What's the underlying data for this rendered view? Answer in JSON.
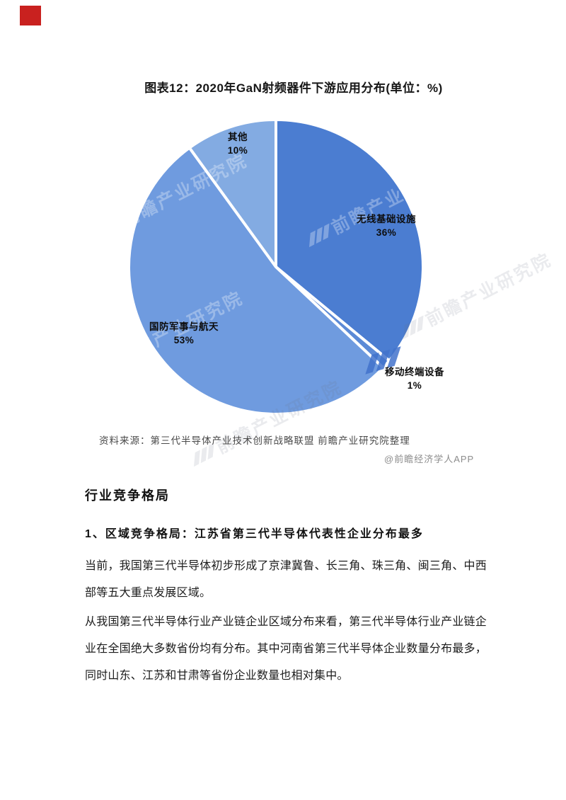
{
  "page": {
    "marker_color": "#c9211f"
  },
  "chart_data": {
    "type": "pie",
    "title": "图表12：2020年GaN射频器件下游应用分布(单位：%)",
    "unit": "%",
    "categories": [
      "无线基础设施",
      "移动终端设备",
      "国防军事与航天",
      "其他"
    ],
    "values": [
      36,
      1,
      53,
      10
    ],
    "pct_labels": [
      "36%",
      "1%",
      "53%",
      "10%"
    ],
    "colors": [
      "#4b7dd1",
      "#5c8ad6",
      "#6f9bdf",
      "#83abe2"
    ],
    "slice_ids": [
      "wireless-infrastructure",
      "mobile-terminal-devices",
      "defense-military-aerospace",
      "other"
    ],
    "start_angle_deg": -90,
    "direction": "clockwise",
    "separator_color": "#ffffff",
    "legend": "none"
  },
  "watermark": {
    "text": "前瞻产业研究院"
  },
  "source": {
    "text": "资料来源：第三代半导体产业技术创新战略联盟 前瞻产业研究院整理"
  },
  "credit": {
    "text": "@前瞻经济学人APP"
  },
  "sections": {
    "heading": "行业竞争格局",
    "subheading": "1、区域竞争格局：江苏省第三代半导体代表性企业分布最多",
    "paragraphs": [
      "当前，我国第三代半导体初步形成了京津冀鲁、长三角、珠三角、闽三角、中西部等五大重点发展区域。",
      "从我国第三代半导体行业产业链企业区域分布来看，第三代半导体行业产业链企业在全国绝大多数省份均有分布。其中河南省第三代半导体企业数量分布最多，同时山东、江苏和甘肃等省份企业数量也相对集中。"
    ]
  }
}
